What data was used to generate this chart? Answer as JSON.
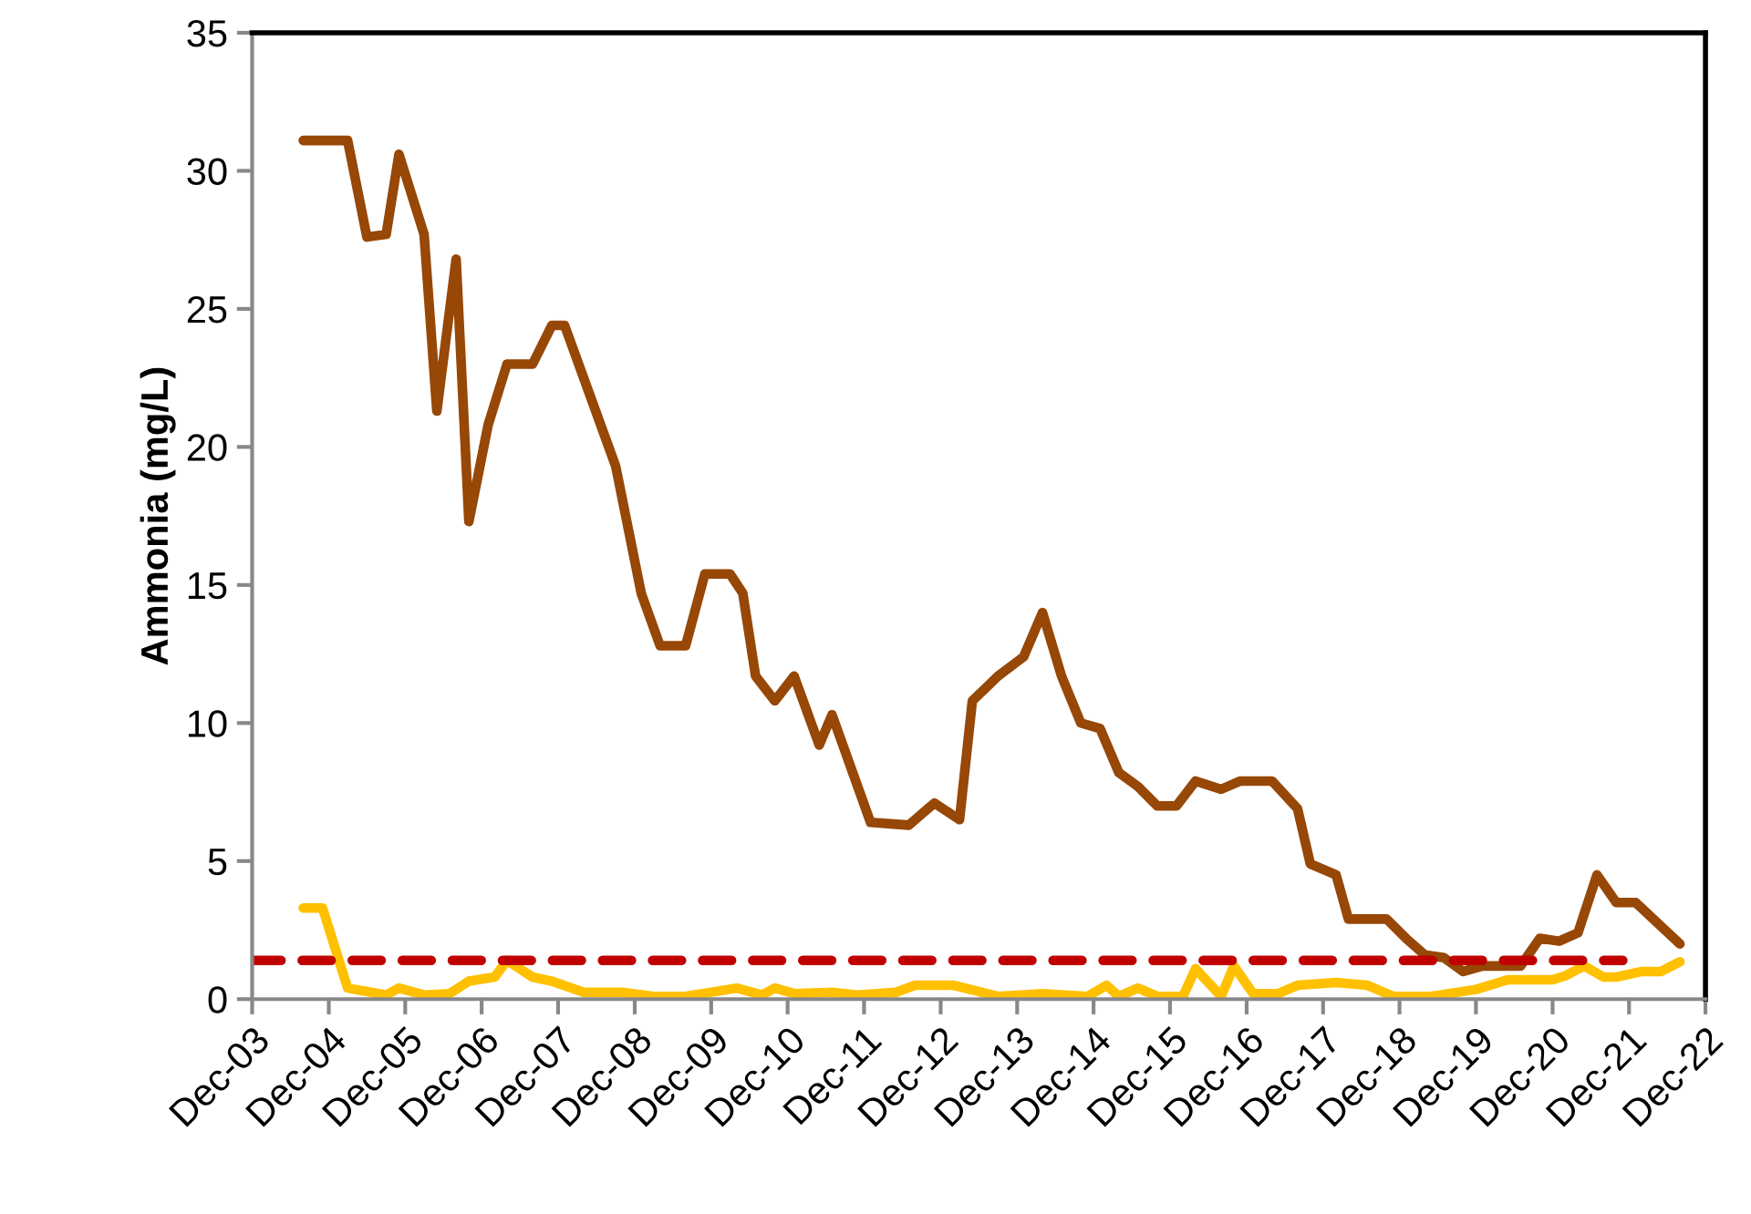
{
  "chart_data": {
    "type": "line",
    "ylabel": "Ammonia (mg/L)",
    "xlim": [
      "2003-12",
      "2022-12"
    ],
    "ylim": [
      0,
      35
    ],
    "yticks": [
      0,
      5,
      10,
      15,
      20,
      25,
      30,
      35
    ],
    "xticks": [
      {
        "value": "2003-12",
        "label": "Dec-03"
      },
      {
        "value": "2004-12",
        "label": "Dec-04"
      },
      {
        "value": "2005-12",
        "label": "Dec-05"
      },
      {
        "value": "2006-12",
        "label": "Dec-06"
      },
      {
        "value": "2007-12",
        "label": "Dec-07"
      },
      {
        "value": "2008-12",
        "label": "Dec-08"
      },
      {
        "value": "2009-12",
        "label": "Dec-09"
      },
      {
        "value": "2010-12",
        "label": "Dec-10"
      },
      {
        "value": "2011-12",
        "label": "Dec-11"
      },
      {
        "value": "2012-12",
        "label": "Dec-12"
      },
      {
        "value": "2013-12",
        "label": "Dec-13"
      },
      {
        "value": "2014-12",
        "label": "Dec-14"
      },
      {
        "value": "2015-12",
        "label": "Dec-15"
      },
      {
        "value": "2016-12",
        "label": "Dec-16"
      },
      {
        "value": "2017-12",
        "label": "Dec-17"
      },
      {
        "value": "2018-12",
        "label": "Dec-18"
      },
      {
        "value": "2019-12",
        "label": "Dec-19"
      },
      {
        "value": "2020-12",
        "label": "Dec-20"
      },
      {
        "value": "2021-12",
        "label": "Dec-21"
      },
      {
        "value": "2022-12",
        "label": "Dec-22"
      }
    ],
    "grid": false,
    "legend": false,
    "marker": "none",
    "series": [
      {
        "color": "#974706",
        "line_style": "solid",
        "x": [
          "2004-08",
          "2005-03",
          "2005-06",
          "2005-09",
          "2005-11",
          "2006-03",
          "2006-05",
          "2006-08",
          "2006-10",
          "2007-01",
          "2007-04",
          "2007-08",
          "2007-11",
          "2008-01",
          "2008-09",
          "2009-01",
          "2009-04",
          "2009-08",
          "2009-11",
          "2010-03",
          "2010-05",
          "2010-07",
          "2010-10",
          "2011-01",
          "2011-05",
          "2011-07",
          "2012-01",
          "2012-07",
          "2012-11",
          "2013-03",
          "2013-05",
          "2013-09",
          "2014-01",
          "2014-04",
          "2014-07",
          "2014-10",
          "2015-01",
          "2015-04",
          "2015-07",
          "2015-10",
          "2016-01",
          "2016-04",
          "2016-08",
          "2016-11",
          "2017-04",
          "2017-08",
          "2017-10",
          "2018-02",
          "2018-04",
          "2018-10",
          "2019-01",
          "2019-04",
          "2019-07",
          "2019-10",
          "2020-01",
          "2020-07",
          "2020-10",
          "2021-01",
          "2021-04",
          "2021-07",
          "2021-10",
          "2022-01",
          "2022-08"
        ],
        "values": [
          31.1,
          31.1,
          27.6,
          27.7,
          30.6,
          27.7,
          21.3,
          26.8,
          17.3,
          20.8,
          23.0,
          23.0,
          24.4,
          24.4,
          19.3,
          14.7,
          12.8,
          12.8,
          15.4,
          15.4,
          14.7,
          11.7,
          10.8,
          11.7,
          9.2,
          10.3,
          6.4,
          6.3,
          7.1,
          6.5,
          10.8,
          11.7,
          12.4,
          14.0,
          11.7,
          10.0,
          9.8,
          8.2,
          7.7,
          7.0,
          7.0,
          7.9,
          7.6,
          7.9,
          7.9,
          6.9,
          4.9,
          4.5,
          2.9,
          2.9,
          2.2,
          1.6,
          1.5,
          1.0,
          1.2,
          1.2,
          2.2,
          2.1,
          2.4,
          4.5,
          3.5,
          3.5,
          2.0
        ]
      },
      {
        "color": "#ffc000",
        "line_style": "solid",
        "x": [
          "2004-08",
          "2004-11",
          "2005-03",
          "2005-09",
          "2005-11",
          "2006-03",
          "2006-07",
          "2006-10",
          "2007-02",
          "2007-04",
          "2007-08",
          "2007-11",
          "2008-04",
          "2008-10",
          "2009-03",
          "2009-08",
          "2010-04",
          "2010-08",
          "2010-10",
          "2011-01",
          "2011-07",
          "2011-11",
          "2012-05",
          "2012-08",
          "2013-02",
          "2013-09",
          "2014-04",
          "2014-11",
          "2015-02",
          "2015-04",
          "2015-07",
          "2015-10",
          "2016-02",
          "2016-04",
          "2016-08",
          "2016-10",
          "2017-01",
          "2017-05",
          "2017-08",
          "2018-02",
          "2018-07",
          "2018-11",
          "2019-05",
          "2019-12",
          "2020-05",
          "2020-12",
          "2021-02",
          "2021-05",
          "2021-08",
          "2021-10",
          "2022-02",
          "2022-05",
          "2022-08"
        ],
        "values": [
          3.3,
          3.3,
          0.4,
          0.15,
          0.4,
          0.15,
          0.2,
          0.65,
          0.8,
          1.4,
          0.8,
          0.65,
          0.25,
          0.25,
          0.1,
          0.1,
          0.4,
          0.15,
          0.4,
          0.2,
          0.25,
          0.15,
          0.25,
          0.5,
          0.5,
          0.1,
          0.2,
          0.1,
          0.5,
          0.1,
          0.4,
          0.1,
          0.1,
          1.1,
          0.1,
          1.2,
          0.2,
          0.2,
          0.5,
          0.6,
          0.5,
          0.1,
          0.1,
          0.35,
          0.7,
          0.7,
          0.85,
          1.2,
          0.8,
          0.8,
          1.0,
          1.0,
          1.35
        ]
      },
      {
        "color": "#c00000",
        "line_style": "dashed",
        "x": [
          "2003-12",
          "2021-11"
        ],
        "values": [
          1.4,
          1.4
        ]
      }
    ]
  }
}
